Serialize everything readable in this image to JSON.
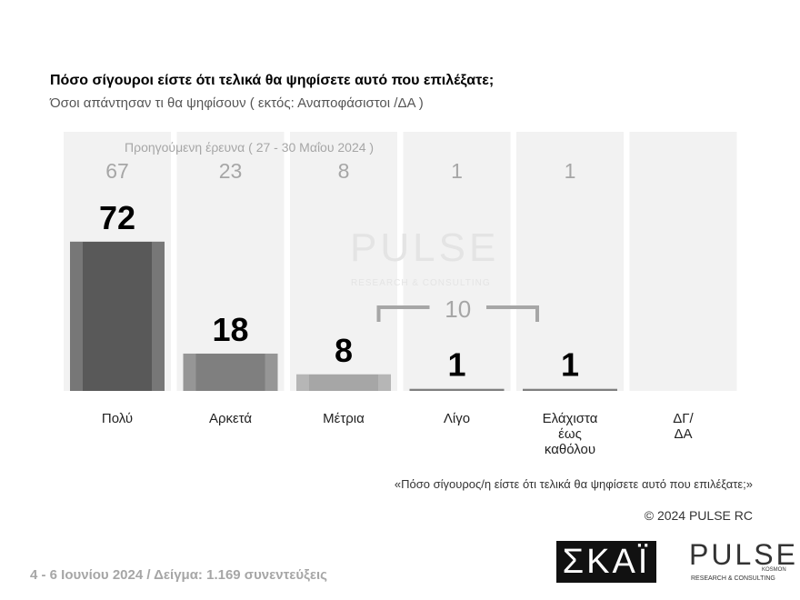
{
  "chart_data": {
    "type": "bar",
    "title": "Πόσο σίγουροι είστε ότι τελικά θα ψηφίσετε αυτό που επιλέξατε;",
    "subtitle": "Όσοι απάντησαν τι θα ψηφίσουν ( εκτός: Αναποφάσιστοι /ΔΑ )",
    "categories": [
      "Πολύ",
      "Αρκετά",
      "Μέτρια",
      "Λίγο",
      "Ελάχιστα έως καθόλου",
      "ΔΓ/ ΔΑ"
    ],
    "values": [
      72,
      18,
      8,
      1,
      1,
      null
    ],
    "colors": [
      "#595959",
      "#7f7f7f",
      "#a6a6a6",
      "#7f7f7f",
      "#7f7f7f",
      "#7f7f7f"
    ],
    "previous": {
      "label": "Προηγούμενη έρευνα  ( 27 - 30 Μαΐου 2024 )",
      "values": [
        67,
        23,
        8,
        1,
        1,
        null
      ]
    },
    "annotation": {
      "value": 10
    },
    "note": "«Πόσο σίγουρος/η είστε ότι τελικά θα ψηφίσετε αυτό που επιλέξατε;»",
    "copyright": "© 2024 PULSE RC",
    "footer": "4 - 6  Ιουνίου 2024  /  Δείγμα:  1.169 συνεντεύξεις",
    "logos": {
      "skai": "ΣΚΑΪ",
      "pulse": "PULSE",
      "pulse_sub": "RESEARCH & CONSULTING",
      "pulse_tag": "KOSMON"
    }
  }
}
